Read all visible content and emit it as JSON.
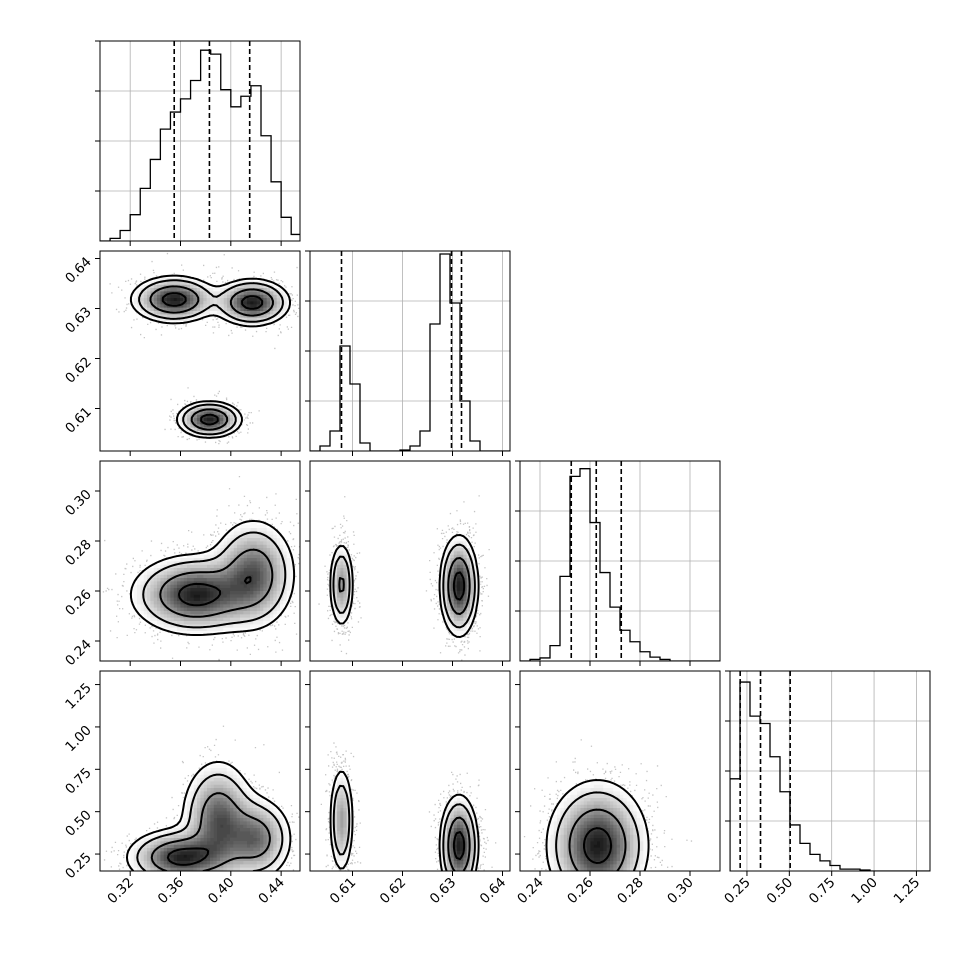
{
  "chart_data": {
    "type": "corner",
    "title": "",
    "parameters": [
      {
        "index": 0,
        "label": "",
        "range": [
          0.296,
          0.455
        ],
        "ticks": [
          0.32,
          0.36,
          0.4,
          0.44
        ],
        "tick_labels": [
          "0.32",
          "0.36",
          "0.40",
          "0.44"
        ],
        "quantiles": [
          0.355,
          0.383,
          0.415
        ]
      },
      {
        "index": 1,
        "label": "",
        "range": [
          0.6015,
          0.6415
        ],
        "ticks": [
          0.61,
          0.62,
          0.63,
          0.64
        ],
        "tick_labels": [
          "0.61",
          "0.62",
          "0.63",
          "0.64"
        ],
        "quantiles": [
          0.6078,
          0.6298,
          0.6318
        ]
      },
      {
        "index": 2,
        "label": "",
        "range": [
          0.232,
          0.312
        ],
        "ticks": [
          0.24,
          0.26,
          0.28,
          0.3
        ],
        "tick_labels": [
          "0.24",
          "0.26",
          "0.28",
          "0.30"
        ],
        "quantiles": [
          0.2525,
          0.2625,
          0.2725
        ]
      },
      {
        "index": 3,
        "label": "",
        "range": [
          0.15,
          1.33
        ],
        "ticks": [
          0.25,
          0.5,
          0.75,
          1.0,
          1.25
        ],
        "tick_labels": [
          "0.25",
          "0.50",
          "0.75",
          "1.00",
          "1.25"
        ],
        "quantiles": [
          0.21,
          0.33,
          0.505
        ]
      }
    ],
    "histograms": [
      {
        "param": 0,
        "bin_start": 0.296,
        "bin_width": 0.008,
        "counts": [
          0,
          2,
          8,
          20,
          40,
          62,
          85,
          98,
          108,
          122,
          145,
          142,
          115,
          102,
          110,
          118,
          80,
          45,
          18,
          5,
          0
        ],
        "ylim": [
          0,
          152
        ]
      },
      {
        "param": 1,
        "bin_start": 0.6015,
        "bin_width": 0.002,
        "counts": [
          0,
          5,
          20,
          105,
          67,
          8,
          0,
          0,
          0,
          1,
          5,
          20,
          127,
          197,
          148,
          50,
          10,
          0,
          0,
          0
        ],
        "ylim": [
          0,
          200
        ]
      },
      {
        "param": 2,
        "bin_start": 0.232,
        "bin_width": 0.004,
        "counts": [
          0,
          2,
          4,
          20,
          110,
          240,
          250,
          180,
          115,
          70,
          40,
          25,
          12,
          5,
          2,
          0,
          0,
          0,
          0,
          0
        ],
        "ylim": [
          0,
          260
        ]
      },
      {
        "param": 3,
        "bin_start": 0.15,
        "bin_width": 0.059,
        "counts": [
          100,
          205,
          168,
          160,
          124,
          86,
          50,
          30,
          18,
          11,
          6,
          2,
          2,
          1,
          0,
          0,
          0,
          0,
          0,
          0
        ],
        "ylim": [
          0,
          217
        ]
      }
    ],
    "density_panels": [
      {
        "x_param": 0,
        "y_param": 1,
        "modes": [
          {
            "x": 0.355,
            "y": 0.6318,
            "sx": 0.016,
            "sy": 0.0022,
            "w": 1.0
          },
          {
            "x": 0.417,
            "y": 0.6312,
            "sx": 0.014,
            "sy": 0.0022,
            "w": 1.0
          },
          {
            "x": 0.383,
            "y": 0.6078,
            "sx": 0.012,
            "sy": 0.0017,
            "w": 1.0
          }
        ]
      },
      {
        "x_param": 0,
        "y_param": 2,
        "modes": [
          {
            "x": 0.372,
            "y": 0.2585,
            "sx": 0.024,
            "sy": 0.0075,
            "w": 1.2
          },
          {
            "x": 0.418,
            "y": 0.267,
            "sx": 0.016,
            "sy": 0.0105,
            "w": 0.9
          }
        ]
      },
      {
        "x_param": 0,
        "y_param": 3,
        "modes": [
          {
            "x": 0.36,
            "y": 0.23,
            "sx": 0.02,
            "sy": 0.08,
            "w": 1.0
          },
          {
            "x": 0.39,
            "y": 0.45,
            "sx": 0.014,
            "sy": 0.17,
            "w": 0.8
          },
          {
            "x": 0.42,
            "y": 0.34,
            "sx": 0.014,
            "sy": 0.12,
            "w": 0.7
          }
        ]
      },
      {
        "x_param": 1,
        "y_param": 2,
        "modes": [
          {
            "x": 0.6078,
            "y": 0.2625,
            "sx": 0.0012,
            "sy": 0.0085,
            "w": 0.7
          },
          {
            "x": 0.6313,
            "y": 0.262,
            "sx": 0.0018,
            "sy": 0.0095,
            "w": 1.3
          }
        ]
      },
      {
        "x_param": 1,
        "y_param": 3,
        "modes": [
          {
            "x": 0.6078,
            "y": 0.45,
            "sx": 0.0012,
            "sy": 0.16,
            "w": 0.6
          },
          {
            "x": 0.6313,
            "y": 0.3,
            "sx": 0.0018,
            "sy": 0.14,
            "w": 1.2
          }
        ]
      },
      {
        "x_param": 2,
        "y_param": 3,
        "modes": [
          {
            "x": 0.263,
            "y": 0.3,
            "sx": 0.0095,
            "sy": 0.18,
            "w": 1.0
          }
        ]
      }
    ],
    "contour_levels": [
      0.85,
      0.5,
      0.22,
      0.1
    ],
    "grid": true,
    "legend": "none"
  }
}
